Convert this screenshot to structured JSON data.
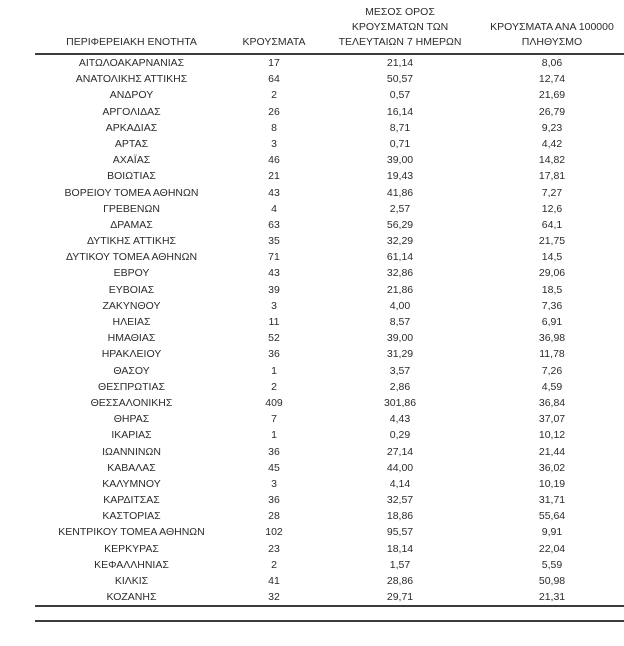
{
  "table": {
    "columns": [
      {
        "id": "regional_unit",
        "label": "ΠΕΡΙΦΕΡΕΙΑΚΗ ΕΝΟΤΗΤΑ"
      },
      {
        "id": "cases",
        "label": "ΚΡΟΥΣΜΑΤΑ"
      },
      {
        "id": "avg_7day",
        "label": [
          "ΜΕΣΟΣ ΟΡΟΣ",
          "ΚΡΟΥΣΜΑΤΩΝ ΤΩΝ",
          "ΤΕΛΕΥΤΑΙΩΝ 7 ΗΜΕΡΩΝ"
        ]
      },
      {
        "id": "per_100k",
        "label": [
          "ΚΡΟΥΣΜΑΤΑ ΑΝΑ 100000",
          "ΠΛΗΘΥΣΜΟ"
        ]
      }
    ],
    "rows": [
      [
        "ΑΙΤΩΛΟΑΚΑΡΝΑΝΙΑΣ",
        "17",
        "21,14",
        "8,06"
      ],
      [
        "ΑΝΑΤΟΛΙΚΗΣ ΑΤΤΙΚΗΣ",
        "64",
        "50,57",
        "12,74"
      ],
      [
        "ΑΝΔΡΟΥ",
        "2",
        "0,57",
        "21,69"
      ],
      [
        "ΑΡΓΟΛΙΔΑΣ",
        "26",
        "16,14",
        "26,79"
      ],
      [
        "ΑΡΚΑΔΙΑΣ",
        "8",
        "8,71",
        "9,23"
      ],
      [
        "ΑΡΤΑΣ",
        "3",
        "0,71",
        "4,42"
      ],
      [
        "ΑΧΑΪΑΣ",
        "46",
        "39,00",
        "14,82"
      ],
      [
        "ΒΟΙΩΤΙΑΣ",
        "21",
        "19,43",
        "17,81"
      ],
      [
        "ΒΟΡΕΙΟΥ ΤΟΜΕΑ ΑΘΗΝΩΝ",
        "43",
        "41,86",
        "7,27"
      ],
      [
        "ΓΡΕΒΕΝΩΝ",
        "4",
        "2,57",
        "12,6"
      ],
      [
        "ΔΡΑΜΑΣ",
        "63",
        "56,29",
        "64,1"
      ],
      [
        "ΔΥΤΙΚΗΣ ΑΤΤΙΚΗΣ",
        "35",
        "32,29",
        "21,75"
      ],
      [
        "ΔΥΤΙΚΟΥ ΤΟΜΕΑ ΑΘΗΝΩΝ",
        "71",
        "61,14",
        "14,5"
      ],
      [
        "ΕΒΡΟΥ",
        "43",
        "32,86",
        "29,06"
      ],
      [
        "ΕΥΒΟΙΑΣ",
        "39",
        "21,86",
        "18,5"
      ],
      [
        "ΖΑΚΥΝΘΟΥ",
        "3",
        "4,00",
        "7,36"
      ],
      [
        "ΗΛΕΙΑΣ",
        "11",
        "8,57",
        "6,91"
      ],
      [
        "ΗΜΑΘΙΑΣ",
        "52",
        "39,00",
        "36,98"
      ],
      [
        "ΗΡΑΚΛΕΙΟΥ",
        "36",
        "31,29",
        "11,78"
      ],
      [
        "ΘΑΣΟΥ",
        "1",
        "3,57",
        "7,26"
      ],
      [
        "ΘΕΣΠΡΩΤΙΑΣ",
        "2",
        "2,86",
        "4,59"
      ],
      [
        "ΘΕΣΣΑΛΟΝΙΚΗΣ",
        "409",
        "301,86",
        "36,84"
      ],
      [
        "ΘΗΡΑΣ",
        "7",
        "4,43",
        "37,07"
      ],
      [
        "ΙΚΑΡΙΑΣ",
        "1",
        "0,29",
        "10,12"
      ],
      [
        "ΙΩΑΝΝΙΝΩΝ",
        "36",
        "27,14",
        "21,44"
      ],
      [
        "ΚΑΒΑΛΑΣ",
        "45",
        "44,00",
        "36,02"
      ],
      [
        "ΚΑΛΥΜΝΟΥ",
        "3",
        "4,14",
        "10,19"
      ],
      [
        "ΚΑΡΔΙΤΣΑΣ",
        "36",
        "32,57",
        "31,71"
      ],
      [
        "ΚΑΣΤΟΡΙΑΣ",
        "28",
        "18,86",
        "55,64"
      ],
      [
        "ΚΕΝΤΡΙΚΟΥ ΤΟΜΕΑ ΑΘΗΝΩΝ",
        "102",
        "95,57",
        "9,91"
      ],
      [
        "ΚΕΡΚΥΡΑΣ",
        "23",
        "18,14",
        "22,04"
      ],
      [
        "ΚΕΦΑΛΛΗΝΙΑΣ",
        "2",
        "1,57",
        "5,59"
      ],
      [
        "ΚΙΛΚΙΣ",
        "41",
        "28,86",
        "50,98"
      ],
      [
        "ΚΟΖΑΝΗΣ",
        "32",
        "29,71",
        "21,31"
      ]
    ],
    "rule_color": "#3c3c3c"
  }
}
